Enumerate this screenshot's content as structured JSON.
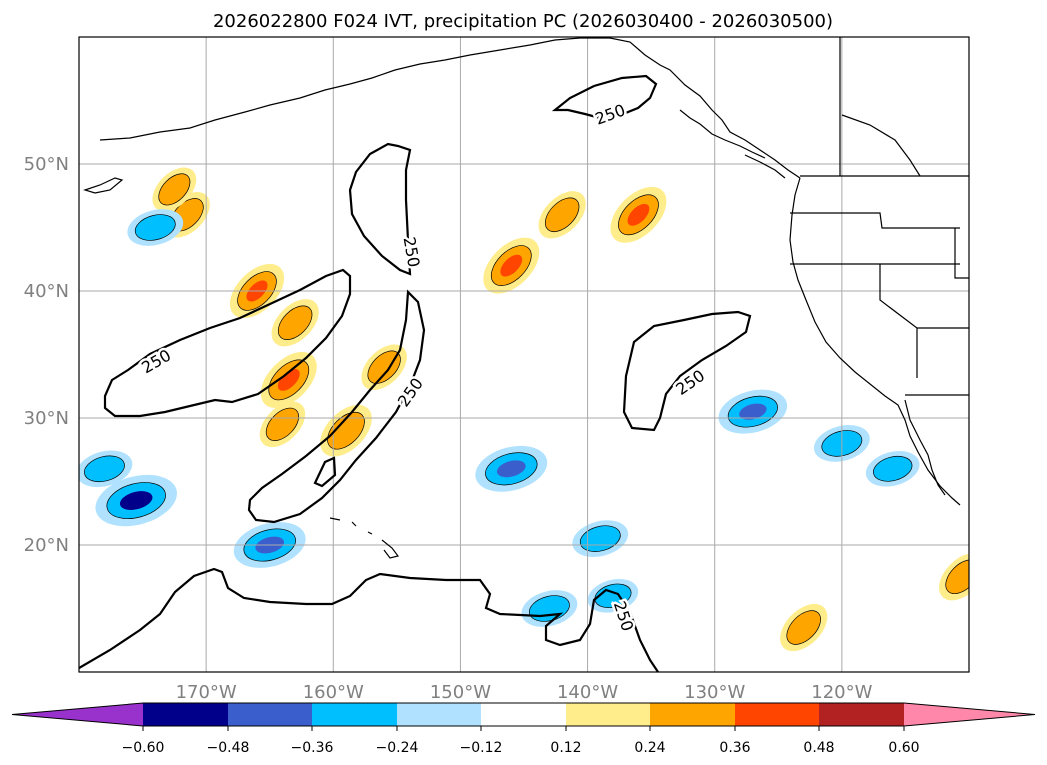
{
  "chart_data": {
    "type": "contour_map",
    "title": "2026022800 F024 IVT, precipitation PC (2026030400 - 2026030500)",
    "map": {
      "lon_range": [
        -180,
        -110
      ],
      "lat_range": [
        10,
        60
      ],
      "lon_ticks": [
        -170,
        -160,
        -150,
        -140,
        -130,
        -120
      ],
      "lat_ticks": [
        20,
        30,
        40,
        50
      ],
      "lon_tick_labels": [
        "170°W",
        "160°W",
        "150°W",
        "140°W",
        "130°W",
        "120°W"
      ],
      "lat_tick_labels": [
        "20°N",
        "30°N",
        "40°N",
        "50°N"
      ],
      "grid": true
    },
    "ivt_contour": {
      "level": 250,
      "label": "250",
      "color": "#000000"
    },
    "colorbar": {
      "extend": "both",
      "boundaries": [
        -0.6,
        -0.48,
        -0.36,
        -0.24,
        -0.12,
        0.12,
        0.24,
        0.36,
        0.48,
        0.6
      ],
      "tick_labels": [
        "−0.60",
        "−0.48",
        "−0.36",
        "−0.24",
        "−0.12",
        "0.12",
        "0.24",
        "0.36",
        "0.48",
        "0.60"
      ],
      "colors": [
        "#9932cc",
        "#00008b",
        "#3a5fcd",
        "#00bfff",
        "#b0e2ff",
        "#ffffff",
        "#ffec8b",
        "#ffa500",
        "#ff4500",
        "#b22222",
        "#ff88aa"
      ]
    },
    "precip_blobs": [
      {
        "lon": -175.5,
        "lat": 23.5,
        "value": -0.54
      },
      {
        "lon": -165.0,
        "lat": 20.0,
        "value": -0.45
      },
      {
        "lon": -178.0,
        "lat": 26.0,
        "value": -0.3
      },
      {
        "lon": -146.0,
        "lat": 26.0,
        "value": -0.45
      },
      {
        "lon": -139.0,
        "lat": 20.5,
        "value": -0.3
      },
      {
        "lon": -143.0,
        "lat": 15.0,
        "value": -0.3
      },
      {
        "lon": -138.0,
        "lat": 16.0,
        "value": -0.25
      },
      {
        "lon": -127.0,
        "lat": 30.5,
        "value": -0.42
      },
      {
        "lon": -120.0,
        "lat": 28.0,
        "value": -0.3
      },
      {
        "lon": -116.0,
        "lat": 26.0,
        "value": -0.28
      },
      {
        "lon": -163.5,
        "lat": 33.0,
        "value": 0.4
      },
      {
        "lon": -163.0,
        "lat": 37.5,
        "value": 0.3
      },
      {
        "lon": -164.0,
        "lat": 29.5,
        "value": 0.28
      },
      {
        "lon": -159.0,
        "lat": 29.0,
        "value": 0.35
      },
      {
        "lon": -166.0,
        "lat": 40.0,
        "value": 0.38
      },
      {
        "lon": -146.0,
        "lat": 42.0,
        "value": 0.4
      },
      {
        "lon": -142.0,
        "lat": 46.0,
        "value": 0.3
      },
      {
        "lon": -136.0,
        "lat": 46.0,
        "value": 0.4
      },
      {
        "lon": -110.5,
        "lat": 17.5,
        "value": 0.3
      },
      {
        "lon": -171.5,
        "lat": 46.0,
        "value": 0.28
      },
      {
        "lon": -172.5,
        "lat": 48.0,
        "value": 0.26
      },
      {
        "lon": -174.0,
        "lat": 45.0,
        "value": -0.3
      },
      {
        "lon": -156.0,
        "lat": 34.0,
        "value": 0.28
      },
      {
        "lon": -123.0,
        "lat": 13.5,
        "value": 0.3
      }
    ]
  }
}
